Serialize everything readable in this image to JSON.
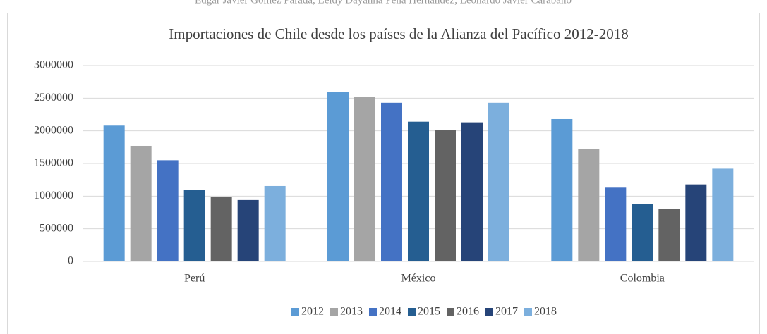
{
  "header": {
    "authors": "Edgar Javier Gómez Parada, Leidy Dayanna Peña Hernández, Leonardo Javier Carabaño"
  },
  "chart_data": {
    "type": "bar",
    "title": "Importaciones de Chile desde los países de la Alianza del Pacífico 2012-2018",
    "categories": [
      "Perú",
      "México",
      "Colombia"
    ],
    "series": [
      {
        "name": "2012",
        "color": "#5b9bd5",
        "values": [
          2080000,
          2600000,
          2180000
        ]
      },
      {
        "name": "2013",
        "color": "#a5a5a5",
        "values": [
          1770000,
          2520000,
          1720000
        ]
      },
      {
        "name": "2014",
        "color": "#4472c4",
        "values": [
          1550000,
          2430000,
          1130000
        ]
      },
      {
        "name": "2015",
        "color": "#255e91",
        "values": [
          1100000,
          2140000,
          880000
        ]
      },
      {
        "name": "2016",
        "color": "#636363",
        "values": [
          990000,
          2010000,
          800000
        ]
      },
      {
        "name": "2017",
        "color": "#264478",
        "values": [
          940000,
          2130000,
          1180000
        ]
      },
      {
        "name": "2018",
        "color": "#7cafdd",
        "values": [
          1155000,
          2430000,
          1420000
        ]
      }
    ],
    "ylim": [
      0,
      3000000
    ],
    "yticks": [
      0,
      500000,
      1000000,
      1500000,
      2000000,
      2500000,
      3000000
    ],
    "grid": true,
    "legend": "bottom"
  }
}
